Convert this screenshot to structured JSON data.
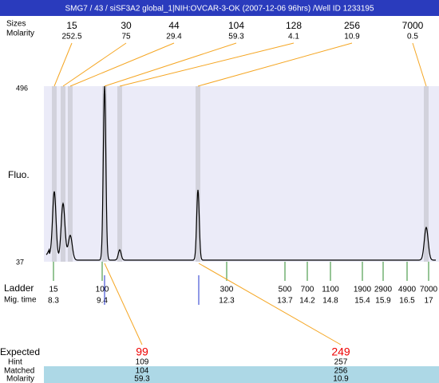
{
  "title": "SMG7 / 43 / siSF3A2 global_1|NIH:OVCAR-3-OK (2007-12-06 96hrs) /Well ID 1233195",
  "peak_table": {
    "size_label": "Sizes",
    "molarity_label": "Molarity",
    "sizes": [
      15,
      30,
      44,
      104,
      128,
      256,
      7000
    ],
    "molarity": [
      252.5,
      75,
      29.4,
      59.3,
      4.1,
      10.9,
      0.5
    ]
  },
  "axis": {
    "label": "Fluo.",
    "max": 496,
    "min": 37
  },
  "ladder": {
    "label": "Ladder",
    "time_label": "Mig. time",
    "sizes": [
      15,
      100,
      300,
      500,
      700,
      1100,
      1900,
      2900,
      4900,
      7000
    ],
    "times": [
      8.3,
      9.4,
      12.3,
      13.7,
      14.2,
      14.8,
      15.4,
      15.9,
      16.5,
      17
    ]
  },
  "results": {
    "expected_label": "Expected",
    "hint_label": "Hint",
    "matched_label": "Matched",
    "molarity_label": "Molarity",
    "expected": [
      99,
      249
    ],
    "hint": [
      109,
      257
    ],
    "matched": [
      104,
      256
    ],
    "molarity": [
      59.3,
      10.9
    ]
  }
}
